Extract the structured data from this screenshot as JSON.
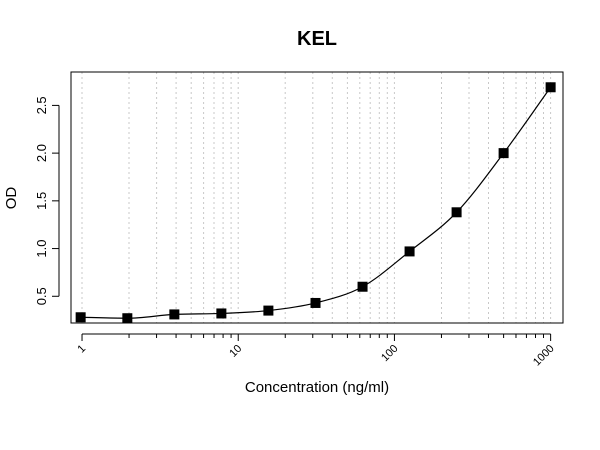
{
  "chart_data": {
    "type": "scatter",
    "title": "KEL",
    "xlabel": "Concentration (ng/ml)",
    "ylabel": "OD",
    "x_scale": "log",
    "xlim": [
      0.85,
      1200
    ],
    "ylim": [
      0.22,
      2.85
    ],
    "x_ticks": [
      1,
      10,
      100,
      1000
    ],
    "x_tick_labels": [
      "1",
      "10",
      "100",
      "1000"
    ],
    "y_ticks": [
      0.5,
      1.0,
      1.5,
      2.0,
      2.5
    ],
    "y_tick_labels": [
      "0.5",
      "1.0",
      "1.5",
      "2.0",
      "2.5"
    ],
    "grid": "vertical dotted at log minor and major ticks",
    "marker": "square",
    "fitted_curve": true,
    "points": [
      {
        "x": 0.98,
        "y": 0.28
      },
      {
        "x": 1.95,
        "y": 0.27
      },
      {
        "x": 3.9,
        "y": 0.31
      },
      {
        "x": 7.8,
        "y": 0.32
      },
      {
        "x": 15.6,
        "y": 0.35
      },
      {
        "x": 31.25,
        "y": 0.43
      },
      {
        "x": 62.5,
        "y": 0.6
      },
      {
        "x": 125,
        "y": 0.97
      },
      {
        "x": 250,
        "y": 1.38
      },
      {
        "x": 500,
        "y": 2.0
      },
      {
        "x": 1000,
        "y": 2.69
      }
    ]
  }
}
